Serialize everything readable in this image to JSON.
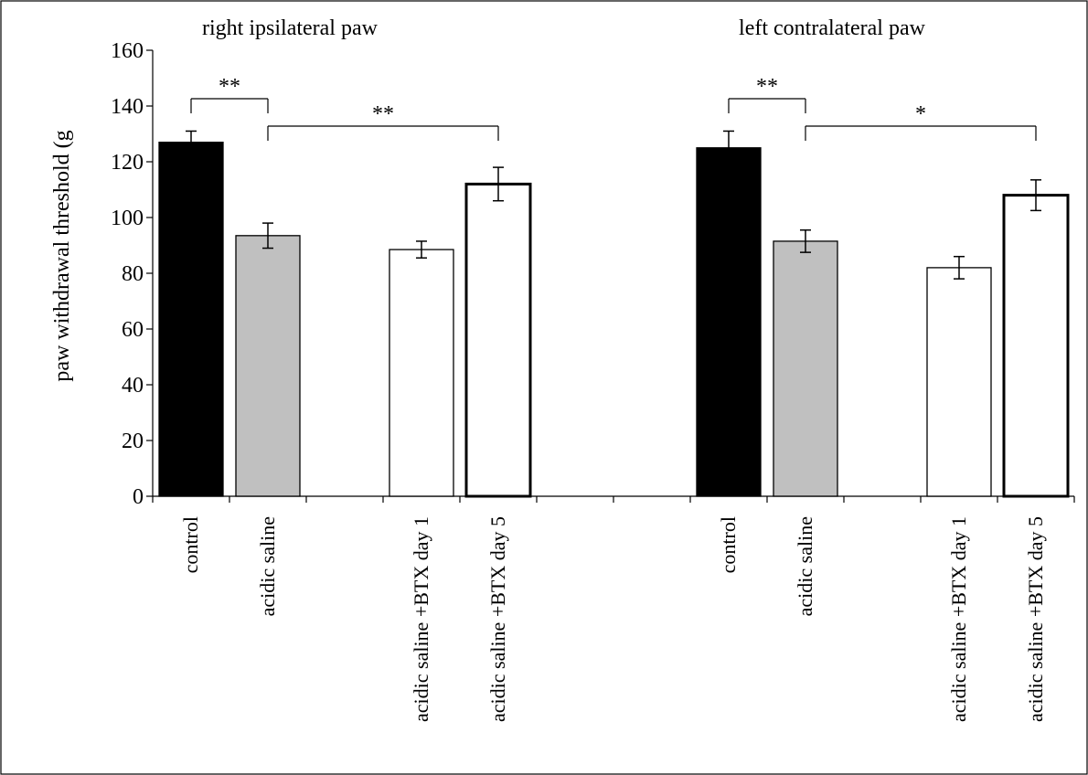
{
  "chart_data": {
    "type": "bar",
    "ylabel": "paw withdrawal threshold (g",
    "ylim": [
      0,
      160
    ],
    "yticks": [
      0,
      20,
      40,
      60,
      80,
      100,
      120,
      140,
      160
    ],
    "grid": false,
    "groups": [
      {
        "title": "right ipsilateral paw",
        "bars": [
          {
            "label": "control",
            "value": 127,
            "err": 4,
            "fill": "#000000"
          },
          {
            "label": "acidic saline",
            "value": 93.5,
            "err": 4.5,
            "fill": "#c0c0c0"
          },
          {
            "label": "acidic saline +BTX day 1",
            "value": 88.5,
            "err": 3,
            "fill": "#ffffff"
          },
          {
            "label": "acidic saline +BTX day 5",
            "value": 112,
            "err": 6,
            "fill": "#ffffff"
          }
        ],
        "significance": [
          {
            "from": "control",
            "to": "acidic saline",
            "label": "**"
          },
          {
            "from": "acidic saline",
            "to": "acidic saline +BTX day 5",
            "label": "**"
          }
        ]
      },
      {
        "title": "left contralateral paw",
        "bars": [
          {
            "label": "control",
            "value": 125,
            "err": 6,
            "fill": "#000000"
          },
          {
            "label": "acidic saline",
            "value": 91.5,
            "err": 4,
            "fill": "#c0c0c0"
          },
          {
            "label": "acidic saline +BTX day 1",
            "value": 82,
            "err": 4,
            "fill": "#ffffff"
          },
          {
            "label": "acidic saline +BTX day 5",
            "value": 108,
            "err": 5.5,
            "fill": "#ffffff"
          }
        ],
        "significance": [
          {
            "from": "control",
            "to": "acidic saline",
            "label": "**"
          },
          {
            "from": "acidic saline",
            "to": "acidic saline +BTX day 5",
            "label": "*"
          }
        ]
      }
    ]
  }
}
